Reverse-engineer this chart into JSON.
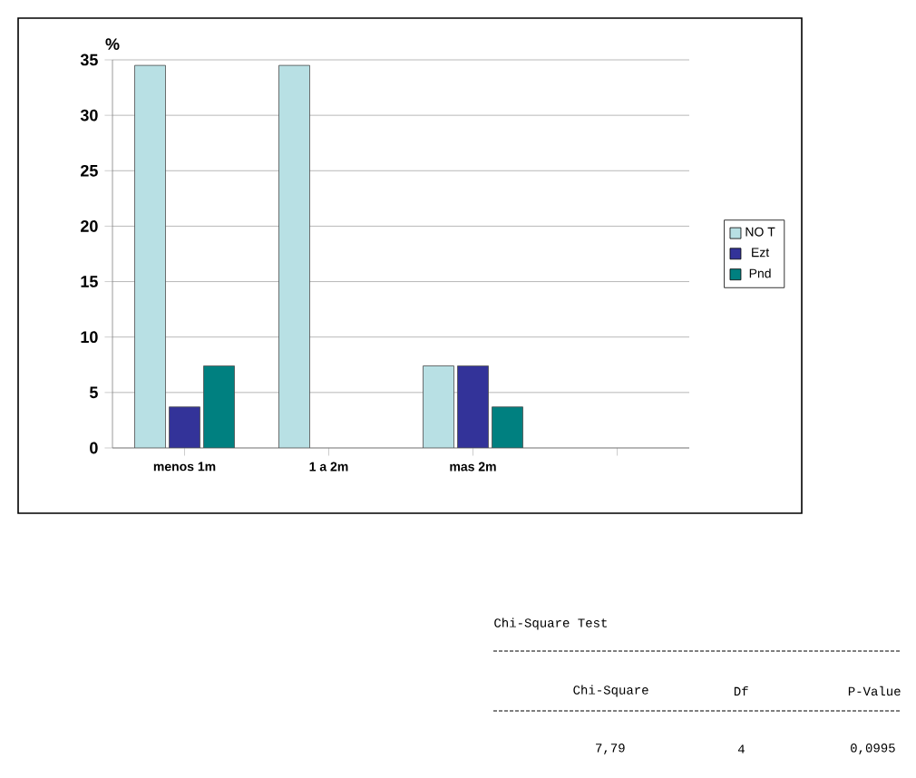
{
  "chart_data": {
    "type": "bar",
    "ylabel": "%",
    "categories": [
      "menos 1m",
      "1 a 2m",
      "mas 2m",
      null
    ],
    "series": [
      {
        "name": "NO T",
        "color": "#b8e0e4",
        "values": [
          34.5,
          34.5,
          7.4,
          null
        ]
      },
      {
        "name": "Ezt",
        "color": "#333399",
        "values": [
          3.7,
          null,
          7.4,
          null
        ]
      },
      {
        "name": "Pnd",
        "color": "#008080",
        "values": [
          7.4,
          null,
          3.7,
          null
        ]
      }
    ],
    "ylim": [
      0,
      35
    ],
    "yticks": [
      0,
      5,
      10,
      15,
      20,
      25,
      30,
      35
    ],
    "grid": "y",
    "legend": "right",
    "annotations": [
      "Chi-Square Test",
      "Chi-Square",
      "Df",
      "P-Value",
      "7,79",
      "4",
      "0,0995"
    ]
  }
}
